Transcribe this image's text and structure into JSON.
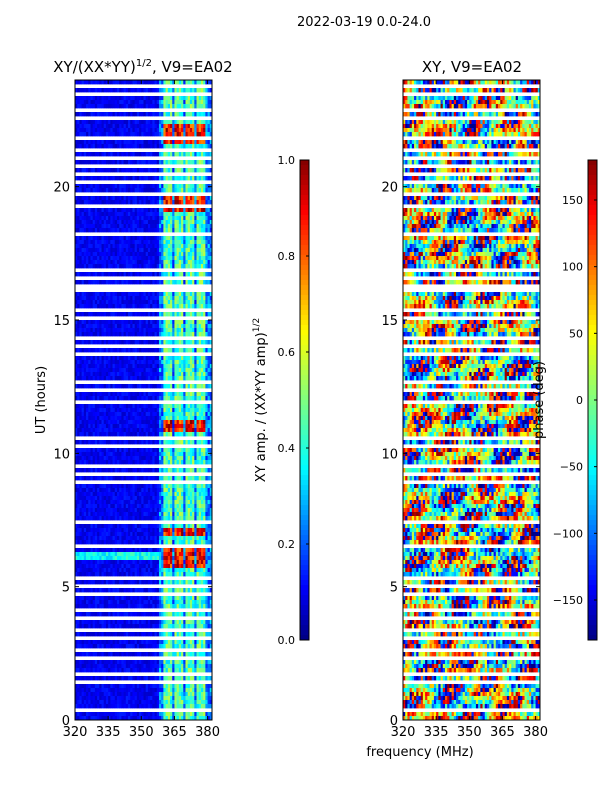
{
  "figure": {
    "suptitle": "2022-03-19 0.0-24.0",
    "xlabel": "frequency (MHz)"
  },
  "chart_data": [
    {
      "type": "heatmap",
      "title_main": "XY/(XX*YY)",
      "title_sup": "1/2",
      "title_rest": ", V9=EA02",
      "xlabel": "",
      "ylabel": "UT (hours)",
      "xlim": [
        320,
        382
      ],
      "ylim": [
        0,
        24
      ],
      "xticks": [
        "320",
        "335",
        "350",
        "365",
        "380"
      ],
      "xtick_values": [
        320,
        335,
        350,
        365,
        380
      ],
      "yticks": [
        "0",
        "5",
        "10",
        "15",
        "20"
      ],
      "ytick_values": [
        0,
        5,
        10,
        15,
        20
      ],
      "colorbar": {
        "label_main": "XY amp. / (XX*YY amp)",
        "label_sup": "1/2",
        "range": [
          0.0,
          1.0
        ],
        "ticks": [
          "0.0",
          "0.2",
          "0.4",
          "0.6",
          "0.8",
          "1.0"
        ],
        "tick_values": [
          0.0,
          0.2,
          0.4,
          0.6,
          0.8,
          1.0
        ]
      },
      "bright_bands_mhz": [
        [
          360,
          364
        ],
        [
          365,
          369
        ],
        [
          370,
          374
        ],
        [
          375,
          379
        ]
      ],
      "strong_rfi_hours": [
        [
          5.7,
          6.4
        ],
        [
          6.9,
          7.2
        ],
        [
          10.8,
          11.2
        ],
        [
          19.0,
          19.6
        ],
        [
          21.6,
          22.4
        ]
      ],
      "colormap": [
        "#000080",
        "#0000ff",
        "#00ffff",
        "#ffff00",
        "#ff0000",
        "#800000"
      ]
    },
    {
      "type": "heatmap",
      "title": "XY, V9=EA02",
      "xlabel": "",
      "ylabel": "",
      "xlim": [
        320,
        382
      ],
      "ylim": [
        0,
        24
      ],
      "xticks": [
        "320",
        "335",
        "350",
        "365",
        "380"
      ],
      "xtick_values": [
        320,
        335,
        350,
        365,
        380
      ],
      "yticks": [
        "0",
        "5",
        "10",
        "15",
        "20"
      ],
      "ytick_values": [
        0,
        5,
        10,
        15,
        20
      ],
      "colorbar": {
        "label": "phase (deg)",
        "range": [
          -180,
          180
        ],
        "ticks": [
          "−150",
          "−100",
          "−50",
          "0",
          "50",
          "100",
          "150"
        ],
        "tick_values": [
          -150,
          -100,
          -50,
          0,
          50,
          100,
          150
        ]
      },
      "colormap": [
        "#000080",
        "#0000ff",
        "#00ffff",
        "#ffff00",
        "#ff0000",
        "#800000"
      ]
    }
  ],
  "flagged_hours": [
    0.4,
    0.9,
    1.4,
    1.75,
    2.1,
    2.35,
    2.6,
    2.85,
    3.1,
    3.35,
    3.6,
    3.85,
    4.1,
    4.35,
    4.7,
    5.0,
    5.35,
    6.5,
    7.45,
    7.65,
    8.55,
    8.9,
    9.25,
    9.55,
    9.9,
    10.25,
    10.55,
    11.55,
    11.95,
    12.35,
    12.7,
    13.05,
    13.35,
    13.75,
    14.05,
    14.35,
    15.05,
    15.4,
    15.75,
    16.1,
    16.3,
    16.55,
    16.9,
    17.25,
    17.55,
    17.85,
    18.25,
    19.25,
    19.7,
    20.15,
    20.45,
    20.75,
    21.05,
    21.35,
    21.85,
    22.55,
    22.85,
    23.1,
    23.45,
    23.75
  ]
}
